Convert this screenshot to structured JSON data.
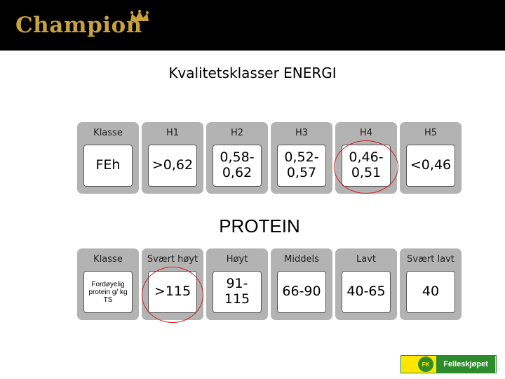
{
  "header": {
    "brand": "Champion"
  },
  "title": "Kvalitetsklasser ENERGI",
  "energy_table": {
    "headers": [
      "Klasse",
      "H1",
      "H2",
      "H3",
      "H4",
      "H5"
    ],
    "values": [
      "FEh",
      ">0,62",
      "0,58-\n0,62",
      "0,52-\n0,57",
      "0,46-\n0,51",
      "<0,46"
    ]
  },
  "protein_title": "PROTEIN",
  "protein_table": {
    "headers": [
      "Klasse",
      "Svært høyt",
      "Høyt",
      "Middels",
      "Lavt",
      "Svært lavt"
    ],
    "values": [
      "Fordøyelig\nprotein g/ kg\nTS",
      ">115",
      "91-\n115",
      "66-90",
      "40-65",
      "40"
    ]
  },
  "footer": {
    "badge": "FK",
    "brand": "Felleskjøpet"
  },
  "colors": {
    "topbar": "#000000",
    "logo": "#c9a23c",
    "tile": "#b3b3b3",
    "highlight": "#d21f1f",
    "fk_yellow": "#ffe600",
    "fk_green": "#2c8c2c"
  }
}
